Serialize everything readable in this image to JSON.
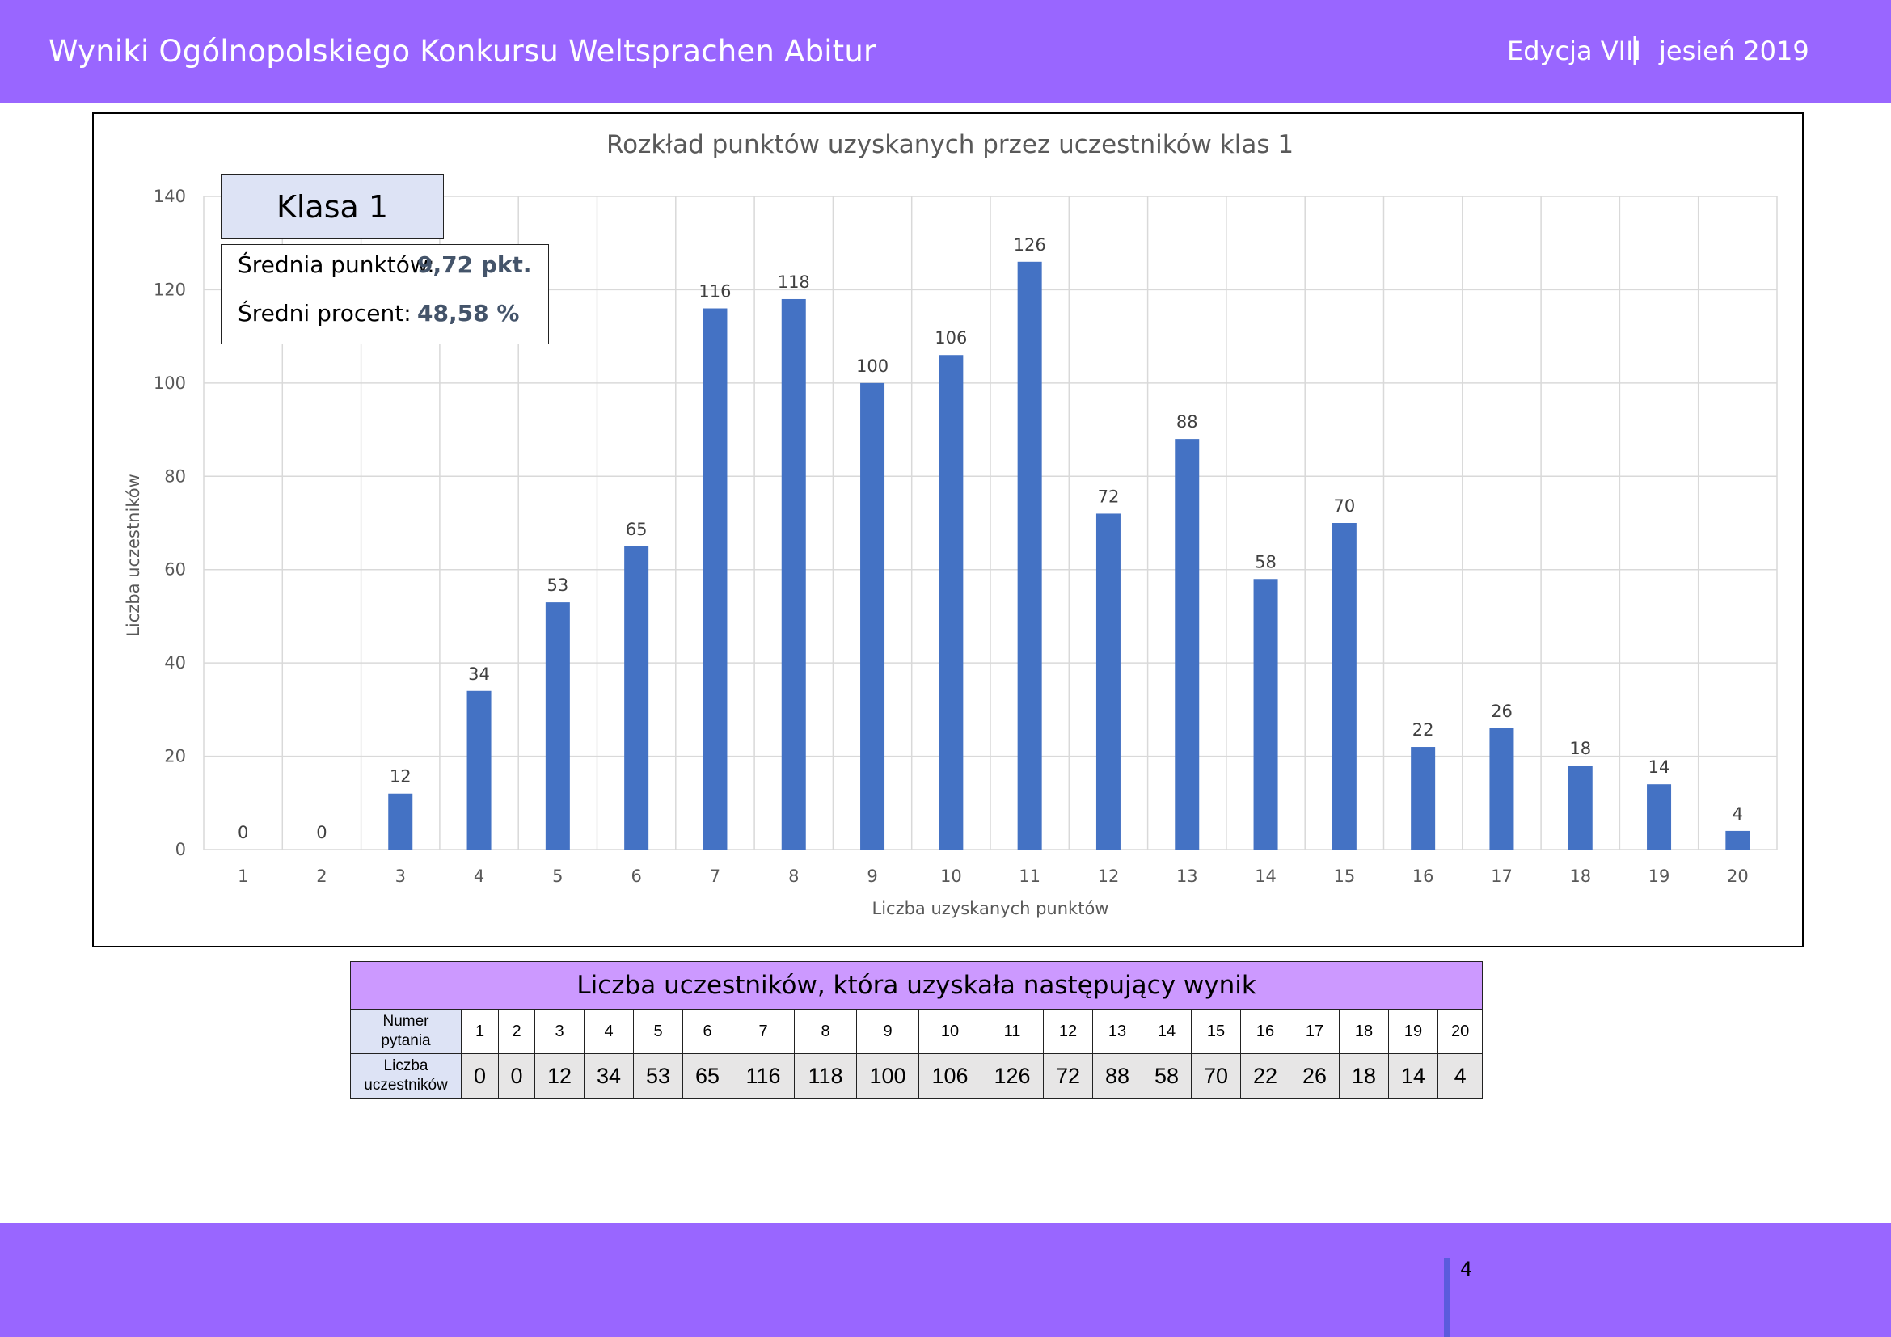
{
  "header": {
    "title": "Wyniki Ogólnopolskiego Konkursu Weltsprachen Abitur",
    "edition": "Edycja VIII",
    "separator": "|",
    "date": "jesień 2019"
  },
  "info": {
    "class_label": "Klasa 1",
    "avg_points_label": "Średnia punktów:",
    "avg_points_value": "9,72 pkt.",
    "avg_percent_label": "Średni procent:",
    "avg_percent_value": "48,58 %"
  },
  "chart_data": {
    "type": "bar",
    "title": "Rozkład punktów uzyskanych przez uczestników klas 1",
    "xlabel": "Liczba uzyskanych punktów",
    "ylabel": "Liczba uczestników",
    "categories": [
      "1",
      "2",
      "3",
      "4",
      "5",
      "6",
      "7",
      "8",
      "9",
      "10",
      "11",
      "12",
      "13",
      "14",
      "15",
      "16",
      "17",
      "18",
      "19",
      "20"
    ],
    "values": [
      0,
      0,
      12,
      34,
      53,
      65,
      116,
      118,
      100,
      106,
      126,
      72,
      88,
      58,
      70,
      22,
      26,
      18,
      14,
      4
    ],
    "ylim": [
      0,
      140
    ],
    "yticks": [
      0,
      20,
      40,
      60,
      80,
      100,
      120,
      140
    ],
    "grid": true,
    "data_labels": true,
    "bar_color": "#4472c4"
  },
  "table": {
    "title": "Liczba uczestników, która uzyskała następujący wynik",
    "row1_header": [
      "Numer",
      "pytania"
    ],
    "row2_header": [
      "Liczba",
      "uczestników"
    ],
    "numbers": [
      "1",
      "2",
      "3",
      "4",
      "5",
      "6",
      "7",
      "8",
      "9",
      "10",
      "11",
      "12",
      "13",
      "14",
      "15",
      "16",
      "17",
      "18",
      "19",
      "20"
    ],
    "counts": [
      "0",
      "0",
      "12",
      "34",
      "53",
      "65",
      "116",
      "118",
      "100",
      "106",
      "126",
      "72",
      "88",
      "58",
      "70",
      "22",
      "26",
      "18",
      "14",
      "4"
    ]
  },
  "footer": {
    "page_number": "4"
  },
  "colors": {
    "header_bg": "#9966ff",
    "table_title_bg": "#cc99ff",
    "label_box_bg": "#dde3f5",
    "stat_value": "#44546a"
  }
}
